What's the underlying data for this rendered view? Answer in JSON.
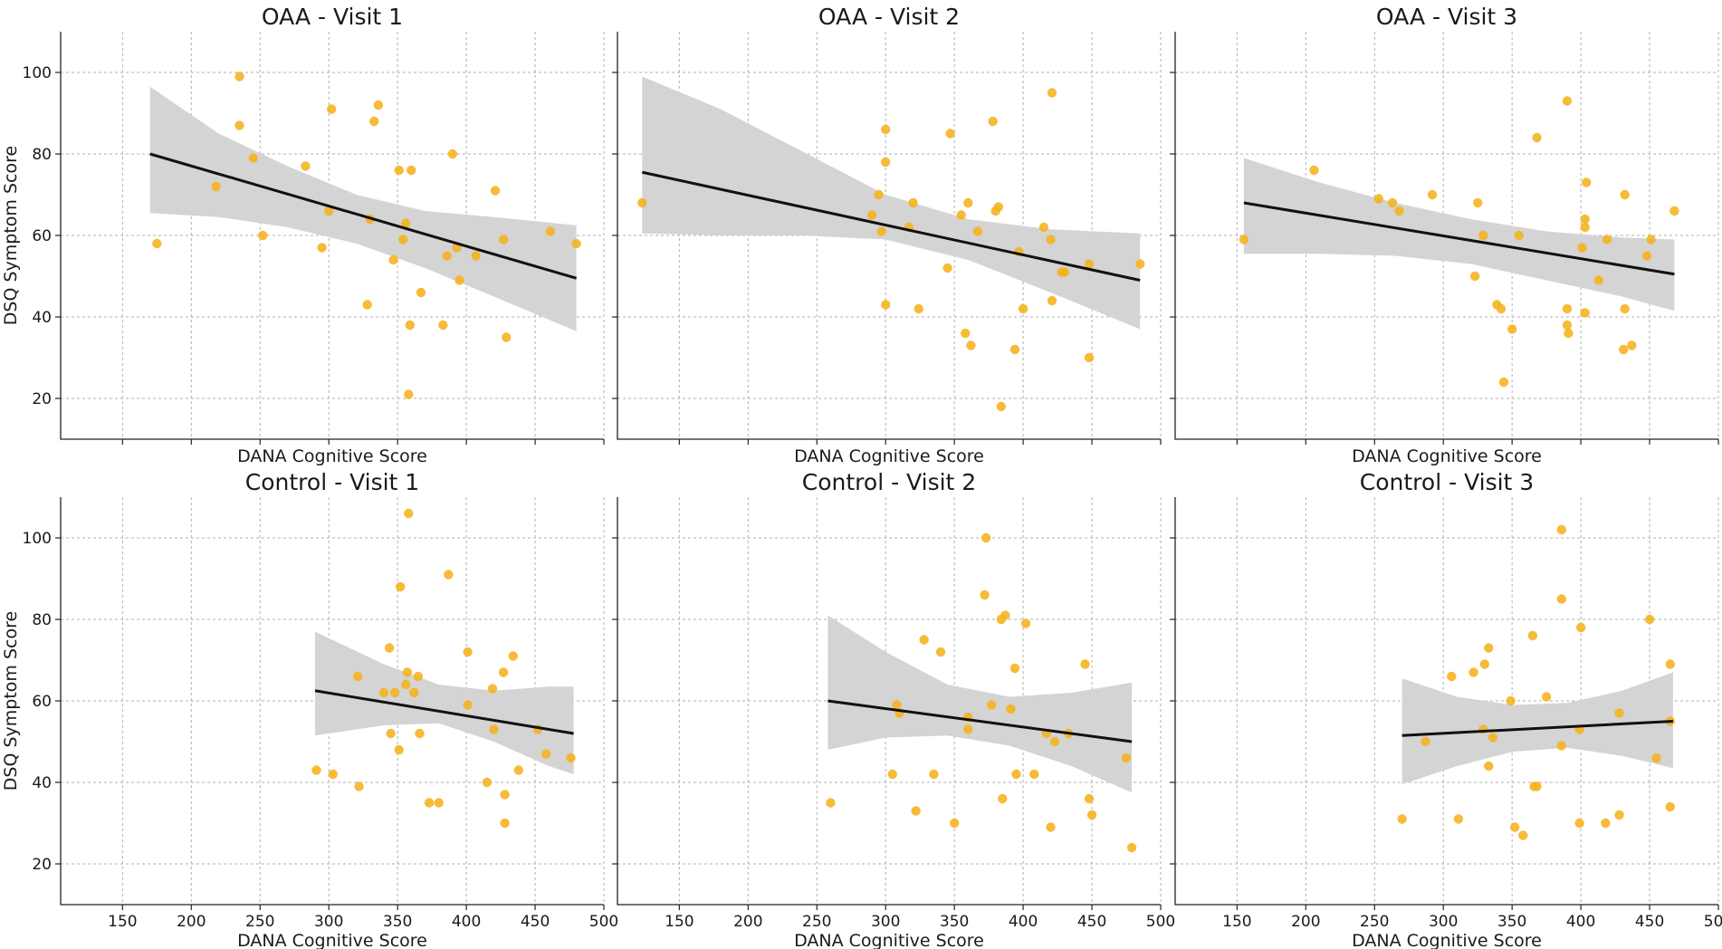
{
  "figure": {
    "point_color": "#f5b21b",
    "band_color": "#d4d4d4",
    "line_color": "#111111"
  },
  "chart_data": [
    {
      "type": "scatter",
      "title": "OAA - Visit 1",
      "xlabel": "DANA Cognitive Score",
      "ylabel": "DSQ Symptom Score",
      "xlim": [
        105,
        500
      ],
      "ylim": [
        10,
        110
      ],
      "xticks": [
        150,
        200,
        250,
        300,
        350,
        400,
        450,
        500
      ],
      "yticks": [
        20,
        40,
        60,
        80,
        100
      ],
      "show_x_tick_labels": false,
      "show_y_tick_labels": true,
      "points": [
        [
          175,
          58
        ],
        [
          218,
          72
        ],
        [
          235,
          99
        ],
        [
          235,
          87
        ],
        [
          245,
          79
        ],
        [
          252,
          60
        ],
        [
          283,
          77
        ],
        [
          295,
          57
        ],
        [
          300,
          66
        ],
        [
          302,
          91
        ],
        [
          328,
          43
        ],
        [
          330,
          64
        ],
        [
          333,
          88
        ],
        [
          336,
          92
        ],
        [
          347,
          54
        ],
        [
          351,
          76
        ],
        [
          354,
          59
        ],
        [
          356,
          63
        ],
        [
          358,
          21
        ],
        [
          359,
          38
        ],
        [
          360,
          76
        ],
        [
          367,
          46
        ],
        [
          383,
          38
        ],
        [
          386,
          55
        ],
        [
          390,
          80
        ],
        [
          393,
          57
        ],
        [
          395,
          49
        ],
        [
          407,
          55
        ],
        [
          421,
          71
        ],
        [
          427,
          59
        ],
        [
          429,
          35
        ],
        [
          461,
          61
        ],
        [
          480,
          58
        ]
      ],
      "fit": {
        "x": [
          170,
          480
        ],
        "y": [
          80,
          49.5
        ]
      },
      "ci_band": {
        "x": [
          170,
          220,
          270,
          320,
          370,
          420,
          480
        ],
        "upper": [
          96.5,
          85,
          77,
          70,
          66,
          64.5,
          62.5
        ],
        "lower": [
          65.5,
          64.5,
          62,
          58,
          52,
          45,
          36.5
        ]
      }
    },
    {
      "type": "scatter",
      "title": "OAA - Visit 2",
      "xlabel": "DANA Cognitive Score",
      "ylabel": "",
      "xlim": [
        105,
        500
      ],
      "ylim": [
        10,
        110
      ],
      "xticks": [
        150,
        200,
        250,
        300,
        350,
        400,
        450,
        500
      ],
      "yticks": [
        20,
        40,
        60,
        80,
        100
      ],
      "show_x_tick_labels": false,
      "show_y_tick_labels": false,
      "points": [
        [
          123,
          68
        ],
        [
          290,
          65
        ],
        [
          295,
          70
        ],
        [
          297,
          61
        ],
        [
          300,
          86
        ],
        [
          300,
          78
        ],
        [
          300,
          43
        ],
        [
          317,
          62
        ],
        [
          320,
          68
        ],
        [
          324,
          42
        ],
        [
          345,
          52
        ],
        [
          347,
          85
        ],
        [
          355,
          65
        ],
        [
          358,
          36
        ],
        [
          360,
          68
        ],
        [
          362,
          33
        ],
        [
          367,
          61
        ],
        [
          378,
          88
        ],
        [
          380,
          66
        ],
        [
          382,
          67
        ],
        [
          384,
          18
        ],
        [
          394,
          32
        ],
        [
          397,
          56
        ],
        [
          400,
          42
        ],
        [
          415,
          62
        ],
        [
          420,
          59
        ],
        [
          421,
          95
        ],
        [
          421,
          44
        ],
        [
          428,
          51
        ],
        [
          430,
          51
        ],
        [
          448,
          53
        ],
        [
          448,
          30
        ],
        [
          485,
          53
        ]
      ],
      "fit": {
        "x": [
          123,
          485
        ],
        "y": [
          75.5,
          49
        ]
      },
      "ci_band": {
        "x": [
          123,
          180,
          240,
          300,
          360,
          420,
          485
        ],
        "upper": [
          99,
          91,
          80.5,
          70,
          64,
          61.5,
          60.5
        ],
        "lower": [
          60.5,
          60,
          60,
          59,
          54,
          46,
          37
        ]
      }
    },
    {
      "type": "scatter",
      "title": "OAA - Visit 3",
      "xlabel": "DANA Cognitive Score",
      "ylabel": "",
      "xlim": [
        105,
        500
      ],
      "ylim": [
        10,
        110
      ],
      "xticks": [
        150,
        200,
        250,
        300,
        350,
        400,
        450,
        500
      ],
      "yticks": [
        20,
        40,
        60,
        80,
        100
      ],
      "show_x_tick_labels": false,
      "show_y_tick_labels": false,
      "points": [
        [
          155,
          59
        ],
        [
          206,
          76
        ],
        [
          253,
          69
        ],
        [
          263,
          68
        ],
        [
          268,
          66
        ],
        [
          292,
          70
        ],
        [
          325,
          68
        ],
        [
          329,
          60
        ],
        [
          323,
          50
        ],
        [
          339,
          43
        ],
        [
          342,
          42
        ],
        [
          344,
          24
        ],
        [
          350,
          37
        ],
        [
          355,
          60
        ],
        [
          368,
          84
        ],
        [
          390,
          93
        ],
        [
          390,
          42
        ],
        [
          390,
          38
        ],
        [
          391,
          36
        ],
        [
          401,
          57
        ],
        [
          403,
          62
        ],
        [
          403,
          64
        ],
        [
          403,
          41
        ],
        [
          404,
          73
        ],
        [
          413,
          49
        ],
        [
          419,
          59
        ],
        [
          431,
          32
        ],
        [
          432,
          70
        ],
        [
          432,
          42
        ],
        [
          437,
          33
        ],
        [
          448,
          55
        ],
        [
          451,
          59
        ],
        [
          468,
          66
        ]
      ],
      "fit": {
        "x": [
          155,
          468
        ],
        "y": [
          68,
          50.5
        ]
      },
      "ci_band": {
        "x": [
          155,
          210,
          265,
          320,
          375,
          430,
          468
        ],
        "upper": [
          79,
          73,
          68,
          64,
          61,
          59.5,
          59
        ],
        "lower": [
          55.5,
          55.5,
          55,
          53,
          49,
          45,
          41.5
        ]
      }
    },
    {
      "type": "scatter",
      "title": "Control - Visit 1",
      "xlabel": "DANA Cognitive Score",
      "ylabel": "DSQ Symptom Score",
      "xlim": [
        105,
        500
      ],
      "ylim": [
        10,
        110
      ],
      "xticks": [
        150,
        200,
        250,
        300,
        350,
        400,
        450,
        500
      ],
      "yticks": [
        20,
        40,
        60,
        80,
        100
      ],
      "show_x_tick_labels": true,
      "show_y_tick_labels": true,
      "points": [
        [
          291,
          43
        ],
        [
          303,
          42
        ],
        [
          321,
          66
        ],
        [
          322,
          39
        ],
        [
          340,
          62
        ],
        [
          344,
          73
        ],
        [
          345,
          52
        ],
        [
          348,
          62
        ],
        [
          351,
          48
        ],
        [
          352,
          88
        ],
        [
          356,
          64
        ],
        [
          357,
          67
        ],
        [
          358,
          106
        ],
        [
          362,
          62
        ],
        [
          365,
          66
        ],
        [
          366,
          52
        ],
        [
          373,
          35
        ],
        [
          380,
          35
        ],
        [
          387,
          91
        ],
        [
          401,
          72
        ],
        [
          401,
          59
        ],
        [
          415,
          40
        ],
        [
          419,
          63
        ],
        [
          420,
          53
        ],
        [
          427,
          67
        ],
        [
          428,
          37
        ],
        [
          428,
          30
        ],
        [
          434,
          71
        ],
        [
          438,
          43
        ],
        [
          452,
          53
        ],
        [
          458,
          47
        ],
        [
          476,
          46
        ]
      ],
      "fit": {
        "x": [
          290,
          478
        ],
        "y": [
          62.5,
          52
        ]
      },
      "ci_band": {
        "x": [
          290,
          340,
          380,
          420,
          460,
          478
        ],
        "upper": [
          77,
          69,
          64,
          62.5,
          63.5,
          63.5
        ],
        "lower": [
          51.5,
          54,
          54.5,
          50,
          44,
          42
        ]
      }
    },
    {
      "type": "scatter",
      "title": "Control - Visit 2",
      "xlabel": "DANA Cognitive Score",
      "ylabel": "",
      "xlim": [
        105,
        500
      ],
      "ylim": [
        10,
        110
      ],
      "xticks": [
        150,
        200,
        250,
        300,
        350,
        400,
        450,
        500
      ],
      "yticks": [
        20,
        40,
        60,
        80,
        100
      ],
      "show_x_tick_labels": true,
      "show_y_tick_labels": false,
      "points": [
        [
          260,
          35
        ],
        [
          305,
          42
        ],
        [
          308,
          59
        ],
        [
          310,
          57
        ],
        [
          322,
          33
        ],
        [
          328,
          75
        ],
        [
          335,
          42
        ],
        [
          340,
          72
        ],
        [
          350,
          30
        ],
        [
          360,
          56
        ],
        [
          360,
          53
        ],
        [
          372,
          86
        ],
        [
          373,
          100
        ],
        [
          377,
          59
        ],
        [
          384,
          80
        ],
        [
          385,
          36
        ],
        [
          387,
          81
        ],
        [
          391,
          58
        ],
        [
          394,
          68
        ],
        [
          395,
          42
        ],
        [
          402,
          79
        ],
        [
          408,
          42
        ],
        [
          417,
          52
        ],
        [
          420,
          29
        ],
        [
          423,
          50
        ],
        [
          433,
          52
        ],
        [
          445,
          69
        ],
        [
          448,
          36
        ],
        [
          450,
          32
        ],
        [
          475,
          46
        ],
        [
          479,
          24
        ]
      ],
      "fit": {
        "x": [
          258,
          479
        ],
        "y": [
          60,
          50
        ]
      },
      "ci_band": {
        "x": [
          258,
          300,
          345,
          390,
          435,
          479
        ],
        "upper": [
          81,
          72,
          64,
          61,
          62,
          64.5
        ],
        "lower": [
          48,
          51,
          51.5,
          49,
          44,
          37.5
        ]
      }
    },
    {
      "type": "scatter",
      "title": "Control - Visit 3",
      "xlabel": "DANA Cognitive Score",
      "ylabel": "",
      "xlim": [
        105,
        500
      ],
      "ylim": [
        10,
        110
      ],
      "xticks": [
        150,
        200,
        250,
        300,
        350,
        400,
        450,
        500
      ],
      "yticks": [
        20,
        40,
        60,
        80,
        100
      ],
      "show_x_tick_labels": true,
      "show_y_tick_labels": false,
      "points": [
        [
          270,
          31
        ],
        [
          287,
          50
        ],
        [
          306,
          66
        ],
        [
          311,
          31
        ],
        [
          322,
          67
        ],
        [
          329,
          53
        ],
        [
          330,
          69
        ],
        [
          333,
          44
        ],
        [
          333,
          73
        ],
        [
          336,
          51
        ],
        [
          349,
          60
        ],
        [
          352,
          29
        ],
        [
          358,
          27
        ],
        [
          365,
          76
        ],
        [
          366,
          39
        ],
        [
          368,
          39
        ],
        [
          375,
          61
        ],
        [
          386,
          49
        ],
        [
          386,
          102
        ],
        [
          386,
          85
        ],
        [
          399,
          30
        ],
        [
          399,
          53
        ],
        [
          400,
          78
        ],
        [
          418,
          30
        ],
        [
          428,
          32
        ],
        [
          428,
          57
        ],
        [
          450,
          80
        ],
        [
          455,
          46
        ],
        [
          465,
          69
        ],
        [
          465,
          55
        ],
        [
          465,
          34
        ]
      ],
      "fit": {
        "x": [
          270,
          467
        ],
        "y": [
          51.5,
          55
        ]
      },
      "ci_band": {
        "x": [
          270,
          310,
          350,
          390,
          430,
          467
        ],
        "upper": [
          65.5,
          61,
          59,
          59.5,
          62.5,
          67
        ],
        "lower": [
          39.5,
          44,
          47.5,
          48.5,
          46.5,
          43.5
        ]
      }
    }
  ]
}
